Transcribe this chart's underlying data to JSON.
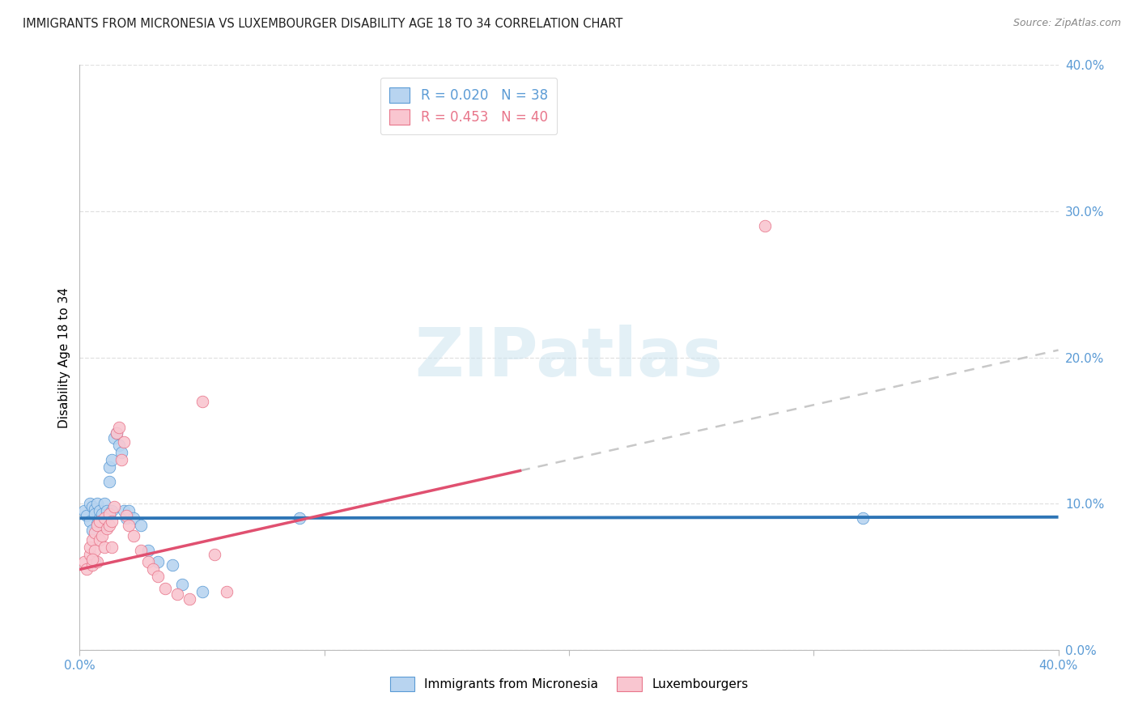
{
  "title": "IMMIGRANTS FROM MICRONESIA VS LUXEMBOURGER DISABILITY AGE 18 TO 34 CORRELATION CHART",
  "source": "Source: ZipAtlas.com",
  "ylabel": "Disability Age 18 to 34",
  "xlim": [
    0.0,
    0.4
  ],
  "ylim": [
    0.0,
    0.4
  ],
  "ytick_values": [
    0.0,
    0.1,
    0.2,
    0.3,
    0.4
  ],
  "xtick_values": [
    0.0,
    0.1,
    0.2,
    0.3,
    0.4
  ],
  "legend1_r": "0.020",
  "legend1_n": "38",
  "legend2_r": "0.453",
  "legend2_n": "40",
  "scatter1_facecolor": "#b8d4f0",
  "scatter1_edgecolor": "#5b9bd5",
  "scatter2_facecolor": "#f9c6d0",
  "scatter2_edgecolor": "#e8758a",
  "line1_color": "#2e75b6",
  "line2_color": "#e05070",
  "dashed_color": "#c8c8c8",
  "grid_color": "#e0e0e0",
  "background_color": "#ffffff",
  "title_fontsize": 10.5,
  "ytick_color": "#5b9bd5",
  "xtick_color": "#5b9bd5",
  "watermark": "ZIPatlas",
  "bottom_legend1": "Immigrants from Micronesia",
  "bottom_legend2": "Luxembourgers",
  "mic_x": [
    0.002,
    0.003,
    0.004,
    0.004,
    0.005,
    0.005,
    0.006,
    0.006,
    0.007,
    0.007,
    0.008,
    0.008,
    0.009,
    0.009,
    0.01,
    0.01,
    0.011,
    0.012,
    0.012,
    0.013,
    0.013,
    0.014,
    0.015,
    0.016,
    0.017,
    0.018,
    0.019,
    0.02,
    0.022,
    0.025,
    0.028,
    0.032,
    0.038,
    0.042,
    0.05,
    0.09,
    0.32,
    0.006
  ],
  "mic_y": [
    0.095,
    0.092,
    0.1,
    0.088,
    0.098,
    0.082,
    0.096,
    0.093,
    0.1,
    0.086,
    0.09,
    0.095,
    0.085,
    0.093,
    0.1,
    0.088,
    0.095,
    0.115,
    0.125,
    0.13,
    0.095,
    0.145,
    0.148,
    0.14,
    0.135,
    0.095,
    0.09,
    0.095,
    0.09,
    0.085,
    0.068,
    0.06,
    0.058,
    0.045,
    0.04,
    0.09,
    0.09,
    0.06
  ],
  "lux_x": [
    0.002,
    0.003,
    0.004,
    0.004,
    0.005,
    0.005,
    0.006,
    0.006,
    0.007,
    0.007,
    0.008,
    0.008,
    0.009,
    0.01,
    0.01,
    0.011,
    0.012,
    0.012,
    0.013,
    0.013,
    0.014,
    0.015,
    0.016,
    0.017,
    0.018,
    0.019,
    0.02,
    0.022,
    0.025,
    0.028,
    0.03,
    0.032,
    0.035,
    0.04,
    0.045,
    0.05,
    0.055,
    0.06,
    0.28,
    0.005
  ],
  "lux_y": [
    0.06,
    0.055,
    0.065,
    0.07,
    0.075,
    0.058,
    0.08,
    0.068,
    0.085,
    0.06,
    0.075,
    0.088,
    0.078,
    0.09,
    0.07,
    0.083,
    0.093,
    0.085,
    0.088,
    0.07,
    0.098,
    0.148,
    0.152,
    0.13,
    0.142,
    0.092,
    0.085,
    0.078,
    0.068,
    0.06,
    0.055,
    0.05,
    0.042,
    0.038,
    0.035,
    0.17,
    0.065,
    0.04,
    0.29,
    0.062
  ]
}
